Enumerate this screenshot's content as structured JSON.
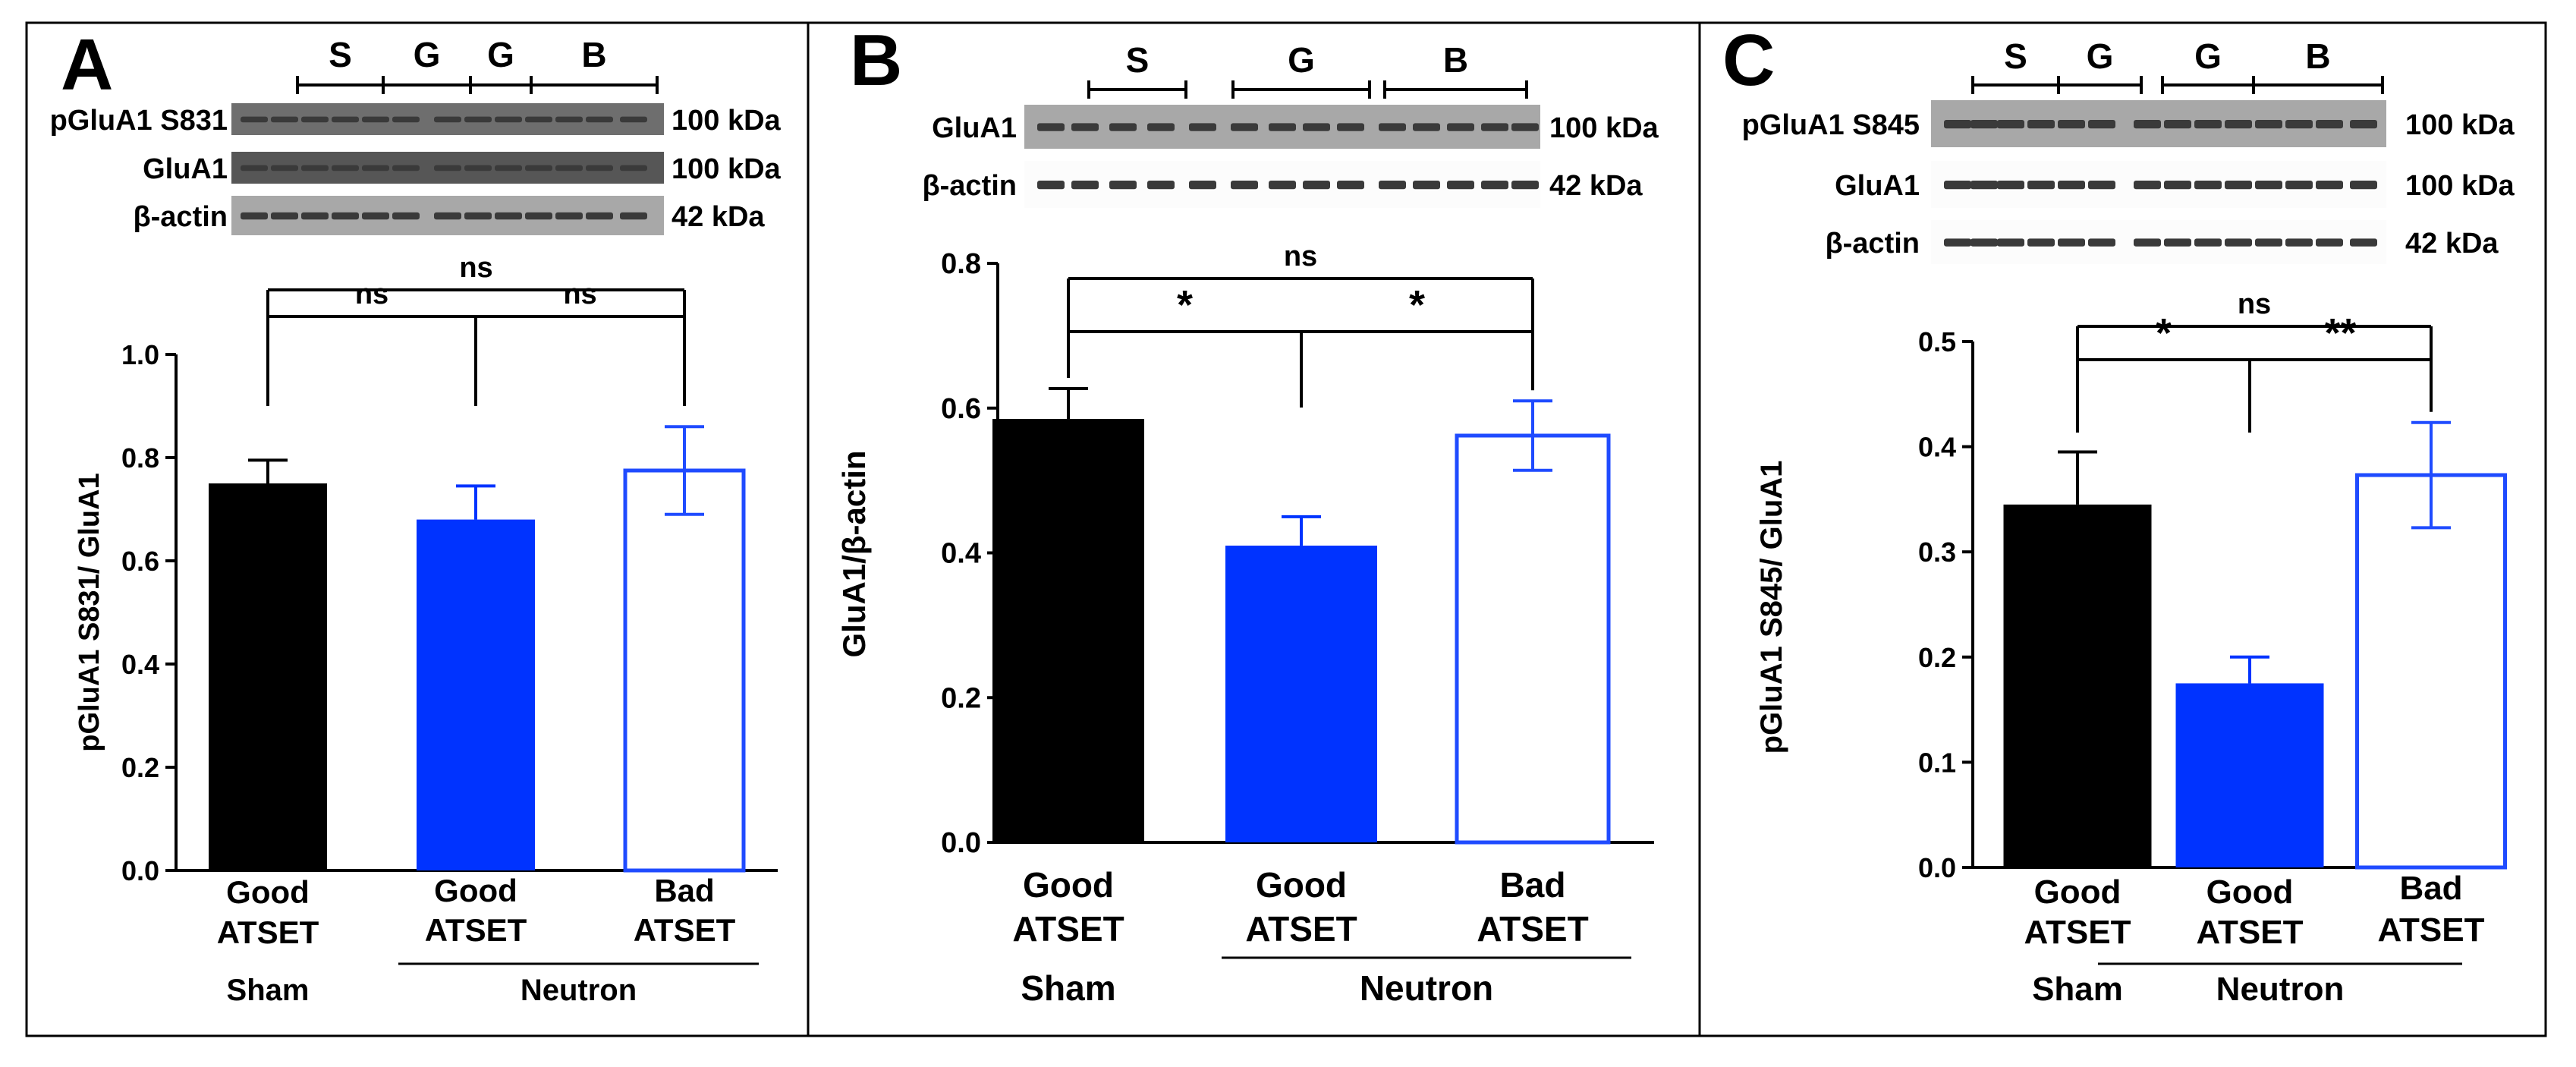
{
  "colors": {
    "sham": "#000000",
    "neutron_good": "#0033ff",
    "neutron_bad_outline": "#1f4bff",
    "border": "#000000",
    "blot_bg": "#cfcfcf",
    "band": "#3a3a3a"
  },
  "panels": [
    {
      "letter": "A",
      "blot": {
        "group_labels": [
          "S",
          "G",
          "G",
          "B"
        ],
        "rows": [
          {
            "label": "pGluA1 S831",
            "kda": "100 kDa"
          },
          {
            "label": "GluA1",
            "kda": "100 kDa"
          },
          {
            "label": "β-actin",
            "kda": "42 kDa"
          }
        ]
      },
      "significance": [
        {
          "from": 0,
          "to": 1,
          "label": "ns"
        },
        {
          "from": 1,
          "to": 2,
          "label": "ns"
        },
        {
          "from": 0,
          "to": 2,
          "label": "ns"
        }
      ]
    },
    {
      "letter": "B",
      "blot": {
        "group_labels": [
          "S",
          "G",
          "B"
        ],
        "rows": [
          {
            "label": "GluA1",
            "kda": "100 kDa"
          },
          {
            "label": "β-actin",
            "kda": "42 kDa"
          }
        ]
      },
      "significance": [
        {
          "from": 0,
          "to": 1,
          "label": "*"
        },
        {
          "from": 1,
          "to": 2,
          "label": "*"
        },
        {
          "from": 0,
          "to": 2,
          "label": "ns"
        }
      ]
    },
    {
      "letter": "C",
      "blot": {
        "group_labels": [
          "S",
          "G",
          "G",
          "B"
        ],
        "rows": [
          {
            "label": "pGluA1 S845",
            "kda": "100 kDa"
          },
          {
            "label": "GluA1",
            "kda": "100 kDa"
          },
          {
            "label": "β-actin",
            "kda": "42 kDa"
          }
        ]
      },
      "significance": [
        {
          "from": 0,
          "to": 1,
          "label": "*"
        },
        {
          "from": 1,
          "to": 2,
          "label": "**"
        },
        {
          "from": 0,
          "to": 2,
          "label": "ns"
        }
      ]
    }
  ],
  "chart_data": [
    {
      "type": "bar",
      "panel": "A",
      "categories": [
        "Good ATSET",
        "Good ATSET",
        "Bad ATSET"
      ],
      "group_labels": [
        "Sham",
        "Neutron"
      ],
      "values": [
        0.75,
        0.68,
        0.775
      ],
      "errors": [
        0.045,
        0.065,
        0.085
      ],
      "fill": [
        "solid",
        "solid",
        "outline"
      ],
      "ylabel": "pGluA1 S831/ GluA1",
      "ylim": [
        0.0,
        1.0
      ],
      "yticks": [
        "0.0",
        "0.2",
        "0.4",
        "0.6",
        "0.8",
        "1.0"
      ],
      "grid": false
    },
    {
      "type": "bar",
      "panel": "B",
      "categories": [
        "Good ATSET",
        "Good ATSET",
        "Bad ATSET"
      ],
      "group_labels": [
        "Sham",
        "Neutron"
      ],
      "values": [
        0.585,
        0.41,
        0.562
      ],
      "errors": [
        0.042,
        0.04,
        0.048
      ],
      "fill": [
        "solid",
        "solid",
        "outline"
      ],
      "ylabel": "GluA1/β-actin",
      "ylim": [
        0.0,
        0.8
      ],
      "yticks": [
        "0.0",
        "0.2",
        "0.4",
        "0.6",
        "0.8"
      ],
      "grid": false
    },
    {
      "type": "bar",
      "panel": "C",
      "categories": [
        "Good ATSET",
        "Good ATSET",
        "Bad ATSET"
      ],
      "group_labels": [
        "Sham",
        "Neutron"
      ],
      "values": [
        0.345,
        0.175,
        0.373
      ],
      "errors": [
        0.05,
        0.025,
        0.05
      ],
      "fill": [
        "solid",
        "solid",
        "outline"
      ],
      "ylabel": "pGluA1 S845/ GluA1",
      "ylim": [
        0.0,
        0.5
      ],
      "yticks": [
        "0.0",
        "0.1",
        "0.2",
        "0.3",
        "0.4",
        "0.5"
      ],
      "grid": false
    }
  ]
}
